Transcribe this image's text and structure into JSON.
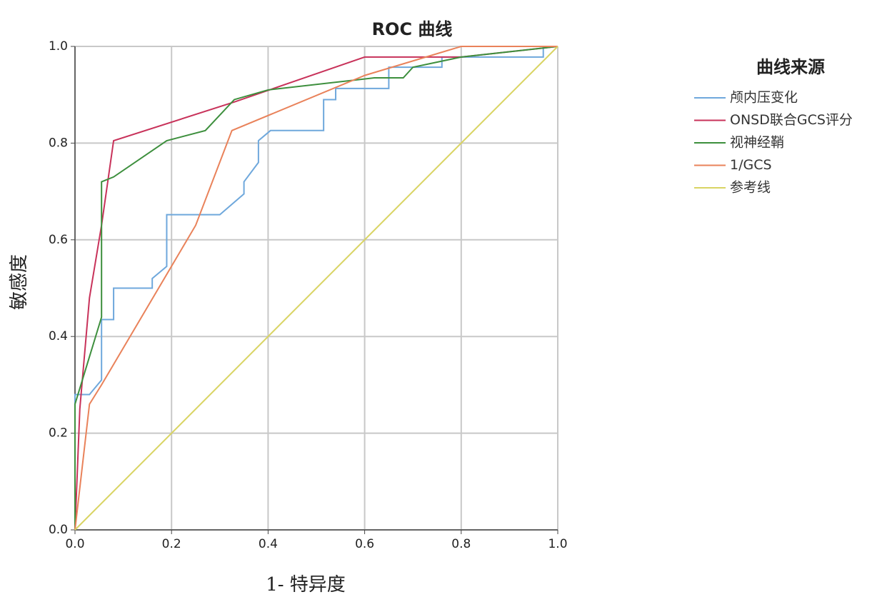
{
  "chart_data": {
    "type": "line",
    "title": "ROC 曲线",
    "x_label": "1- 特异度",
    "y_label": "敏感度",
    "legend_title": "曲线来源",
    "legend": "right",
    "grid": true,
    "xlim": [
      0,
      1
    ],
    "ylim": [
      0,
      1
    ],
    "xticks": [
      {
        "value": 0,
        "label": "0.0"
      },
      0.2,
      0.4,
      0.6,
      0.8,
      {
        "value": 1,
        "label": "1.0"
      }
    ],
    "yticks": [
      {
        "value": 0,
        "label": "0.0"
      },
      0.2,
      0.4,
      0.6,
      0.8,
      {
        "value": 1,
        "label": "1.0"
      }
    ],
    "series": [
      {
        "name": "颅内压变化",
        "color": "#6fa8dc",
        "x": [
          0,
          0,
          0.03,
          0.055,
          0.055,
          0.08,
          0.08,
          0.16,
          0.16,
          0.19,
          0.19,
          0.3,
          0.35,
          0.35,
          0.38,
          0.38,
          0.405,
          0.515,
          0.515,
          0.54,
          0.54,
          0.65,
          0.65,
          0.76,
          0.76,
          0.97,
          0.97,
          1
        ],
        "values": [
          0,
          0.28,
          0.28,
          0.31,
          0.435,
          0.435,
          0.5,
          0.5,
          0.52,
          0.545,
          0.652,
          0.652,
          0.695,
          0.72,
          0.76,
          0.805,
          0.826,
          0.826,
          0.89,
          0.89,
          0.913,
          0.913,
          0.957,
          0.957,
          0.978,
          0.978,
          1,
          1
        ]
      },
      {
        "name": "ONSD联合GCS评分",
        "color": "#c8325a",
        "x": [
          0,
          0.01,
          0.03,
          0.055,
          0.08,
          0.33,
          0.6,
          0.8,
          1
        ],
        "values": [
          0,
          0.25,
          0.48,
          0.63,
          0.805,
          0.885,
          0.978,
          0.978,
          1
        ]
      },
      {
        "name": "视神经鞘",
        "color": "#3d8f3d",
        "x": [
          0,
          0,
          0.055,
          0.055,
          0.08,
          0.19,
          0.27,
          0.33,
          0.4,
          0.62,
          0.68,
          0.7,
          0.8,
          1
        ],
        "values": [
          0,
          0.26,
          0.44,
          0.72,
          0.73,
          0.805,
          0.826,
          0.89,
          0.91,
          0.935,
          0.935,
          0.957,
          0.978,
          1
        ]
      },
      {
        "name": "1/GCS",
        "color": "#e9825a",
        "x": [
          0,
          0.03,
          0.055,
          0.25,
          0.325,
          0.6,
          0.8,
          1
        ],
        "values": [
          0,
          0.26,
          0.3,
          0.63,
          0.826,
          0.94,
          1,
          1
        ]
      },
      {
        "name": "参考线",
        "color": "#d9d463",
        "x": [
          0,
          1
        ],
        "values": [
          0,
          1
        ]
      }
    ]
  }
}
